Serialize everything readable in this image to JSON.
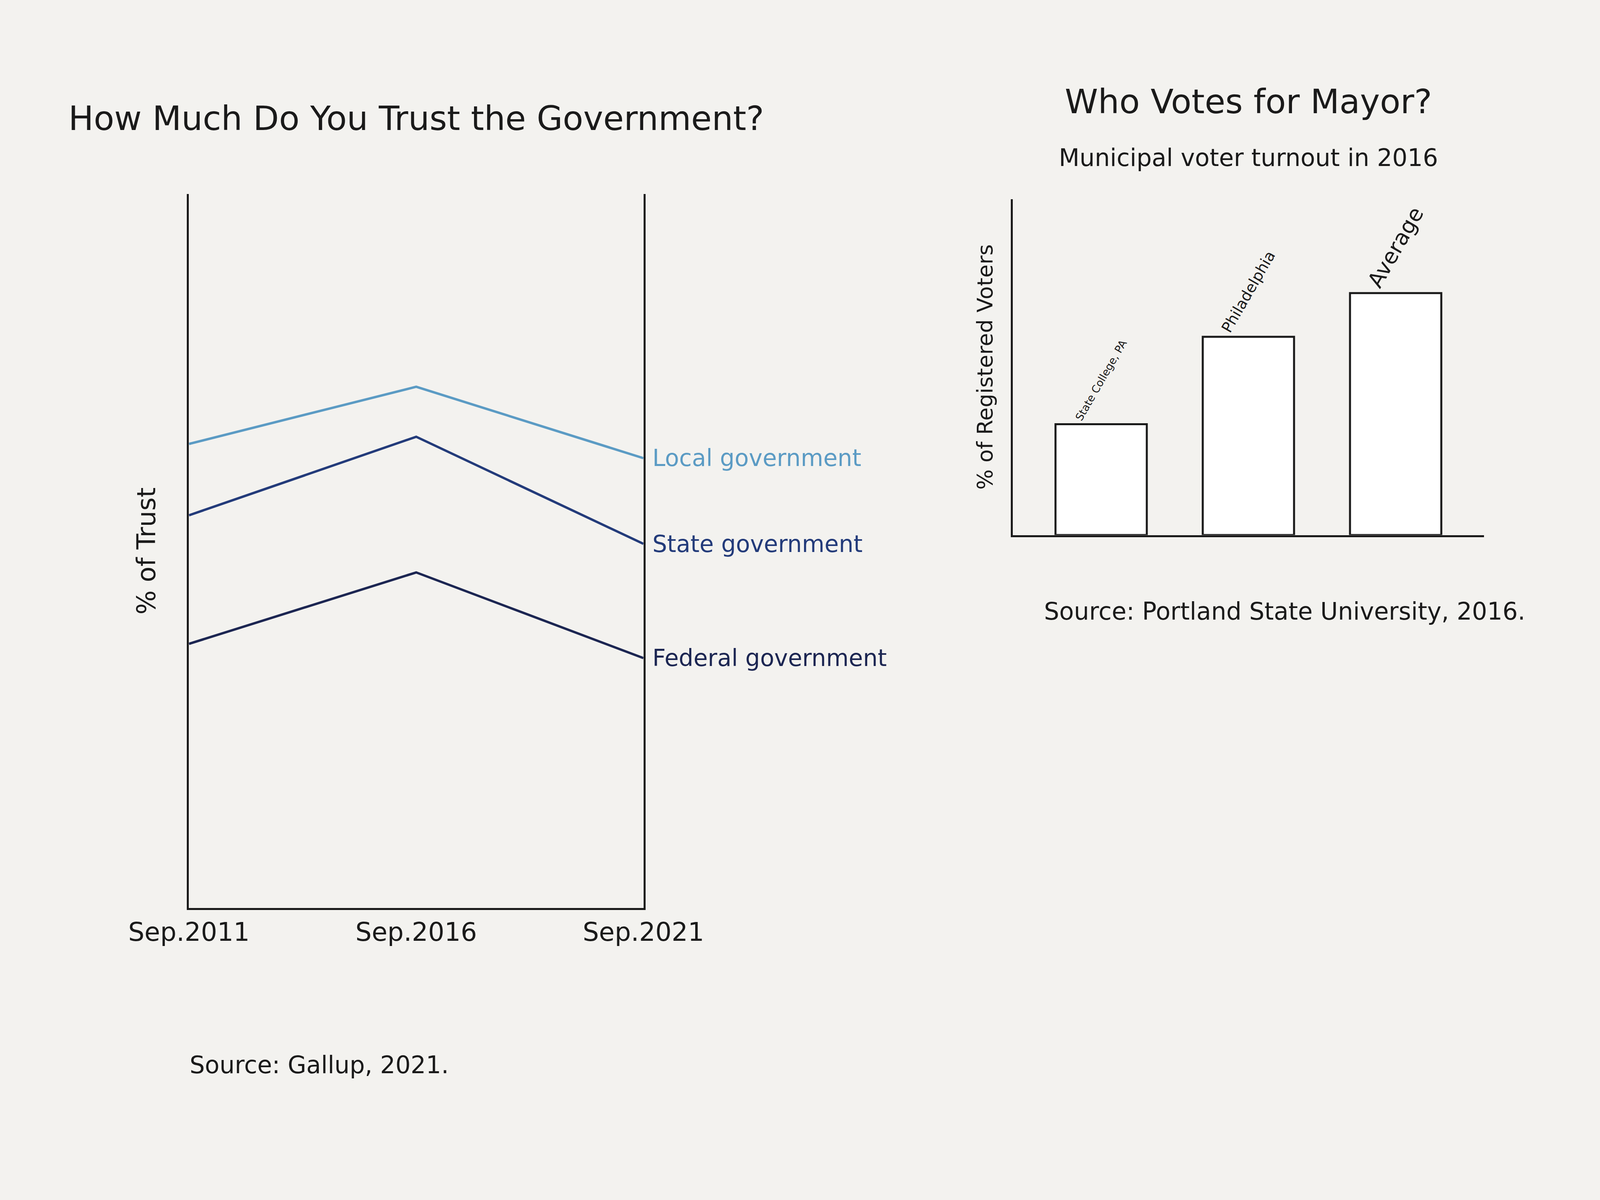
{
  "chart_data": [
    {
      "type": "line",
      "title": "How Much Do You Trust the Government?",
      "y_label": "% of Trust",
      "categories": [
        "Sep.2011",
        "Sep.2016",
        "Sep.2021"
      ],
      "series": [
        {
          "name": "Local government",
          "color": "#5b9bc4",
          "values": [
            65,
            73,
            63
          ]
        },
        {
          "name": "State government",
          "color": "#233b7a",
          "values": [
            55,
            66,
            51
          ]
        },
        {
          "name": "Federal government",
          "color": "#1c2652",
          "values": [
            37,
            47,
            35
          ]
        }
      ],
      "ylim": [
        0,
        100
      ],
      "grid": false,
      "tick_labels": "x",
      "annotations": [
        "Source: Gallup, 2021."
      ]
    },
    {
      "type": "bar",
      "title": "Who Votes for Mayor?",
      "subtitle": "Municipal voter turnout in 2016",
      "y_label": "% of Registered Voters",
      "categories": [
        "State College, PA",
        "Philadelphia",
        "Average"
      ],
      "values": [
        33,
        59,
        72
      ],
      "color": "#ffffff",
      "ylim": [
        0,
        100
      ],
      "grid": false,
      "tick_labels": false,
      "annotations": [
        "Source: Portland State University, 2016."
      ]
    }
  ]
}
